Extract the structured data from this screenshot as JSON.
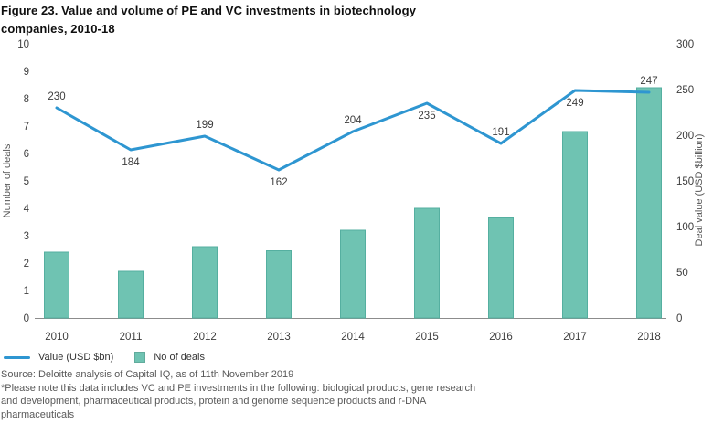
{
  "figure": {
    "title_lines": [
      "Figure 23. Value and volume of PE and VC investments in biotechnology",
      "companies, 2010-18"
    ],
    "source_line": "Source: Deloitte analysis of Capital IQ, as of 11th November 2019",
    "note_lines": [
      "*Please note this data includes VC and PE investments in the following: biological products, gene research",
      "and development, pharmaceutical products, protein and genome sequence products and r-DNA",
      "pharmaceuticals"
    ]
  },
  "colors": {
    "bar_fill": "#6FC3B2",
    "bar_border": "#55AFA0",
    "line": "#2E96D1",
    "axis_line": "#8C8C8C",
    "tick_text": "#3D3D3D",
    "data_label_text": "#3D3D3D",
    "axis_title_text": "#575757",
    "legend_text": "#333333",
    "source_text": "#595959",
    "title_text": "#0F0F0F"
  },
  "chart_data": {
    "type": "bar+line combo",
    "title": "Figure 23. Value and volume of PE and VC investments in biotechnology companies, 2010-18",
    "categories": [
      "2010",
      "2011",
      "2012",
      "2013",
      "2014",
      "2015",
      "2016",
      "2017",
      "2018"
    ],
    "series": [
      {
        "name": "Value (USD $bn)",
        "type": "line",
        "axis": "right",
        "values": [
          230,
          184,
          199,
          162,
          204,
          235,
          191,
          249,
          247
        ],
        "data_labels": [
          "230",
          "184",
          "199",
          "162",
          "204",
          "235",
          "191",
          "249",
          "247"
        ],
        "label_positions": [
          "above",
          "below",
          "above",
          "below",
          "above",
          "below",
          "above",
          "below",
          "above"
        ]
      },
      {
        "name": "No of deals",
        "type": "bar",
        "axis": "left",
        "values": [
          2.4,
          1.7,
          2.6,
          2.45,
          3.2,
          4.0,
          3.65,
          6.8,
          8.4
        ]
      }
    ],
    "left_axis": {
      "label": "Number of deals",
      "ticks": [
        0,
        1,
        2,
        3,
        4,
        5,
        6,
        7,
        8,
        9,
        10
      ],
      "range": [
        0,
        10
      ]
    },
    "right_axis": {
      "label": "Deal value (USD $billion)",
      "ticks": [
        0,
        50,
        100,
        150,
        200,
        250,
        300
      ],
      "range": [
        0,
        300
      ]
    },
    "grid": "off",
    "legend_position": "bottom-left",
    "legend": [
      {
        "label": "Value (USD $bn)",
        "swatch": "line"
      },
      {
        "label": "No of deals",
        "swatch": "square"
      }
    ]
  }
}
